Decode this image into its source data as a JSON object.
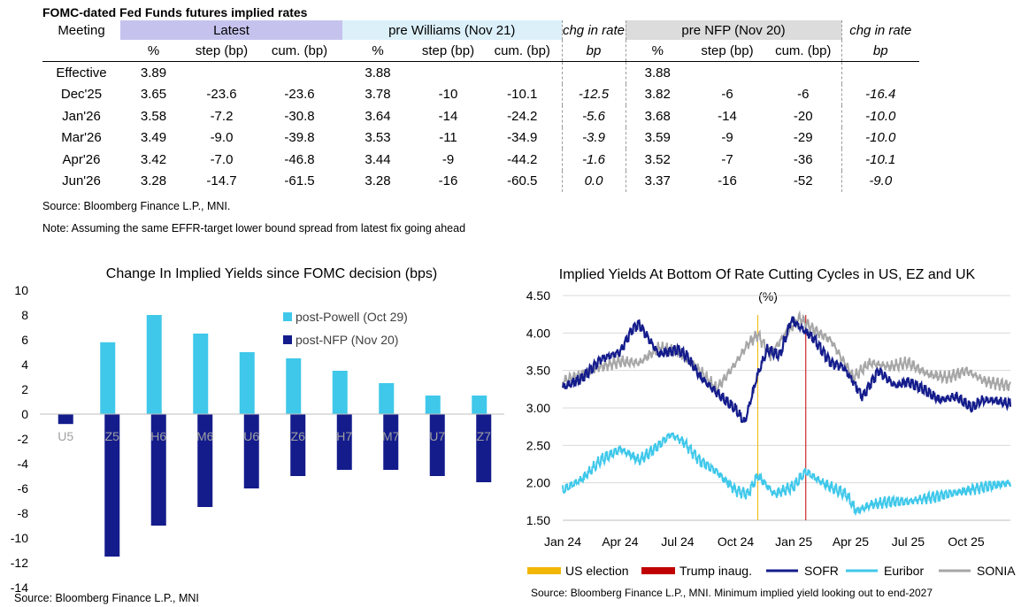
{
  "table": {
    "title": "FOMC-dated Fed Funds futures implied rates",
    "group_headers": {
      "meeting": "Meeting",
      "latest": "Latest",
      "williams": "pre Williams (Nov 21)",
      "chg1": "chg in rate",
      "nfp": "pre NFP (Nov 20)",
      "chg2": "chg in rate"
    },
    "sub_headers": [
      "",
      "%",
      "step (bp)",
      "cum. (bp)",
      "%",
      "step (bp)",
      "cum. (bp)",
      "bp",
      "%",
      "step (bp)",
      "cum. (bp)",
      "bp"
    ],
    "rows": [
      [
        "Effective",
        "3.89",
        "",
        "",
        "3.88",
        "",
        "",
        "",
        "3.88",
        "",
        "",
        ""
      ],
      [
        "Dec'25",
        "3.65",
        "-23.6",
        "-23.6",
        "3.78",
        "-10",
        "-10.1",
        "-12.5",
        "3.82",
        "-6",
        "-6",
        "-16.4"
      ],
      [
        "Jan'26",
        "3.58",
        "-7.2",
        "-30.8",
        "3.64",
        "-14",
        "-24.2",
        "-5.6",
        "3.68",
        "-14",
        "-20",
        "-10.0"
      ],
      [
        "Mar'26",
        "3.49",
        "-9.0",
        "-39.8",
        "3.53",
        "-11",
        "-34.9",
        "-3.9",
        "3.59",
        "-9",
        "-29",
        "-10.0"
      ],
      [
        "Apr'26",
        "3.42",
        "-7.0",
        "-46.8",
        "3.44",
        "-9",
        "-44.2",
        "-1.6",
        "3.52",
        "-7",
        "-36",
        "-10.1"
      ],
      [
        "Jun'26",
        "3.28",
        "-14.7",
        "-61.5",
        "3.28",
        "-16",
        "-60.5",
        "0.0",
        "3.37",
        "-16",
        "-52",
        "-9.0"
      ]
    ],
    "source": "Source: Bloomberg Finance L.P., MNI.",
    "note": "Note: Assuming the same  EFFR-target lower bound spread from latest fix going ahead"
  },
  "chart_data": [
    {
      "type": "bar",
      "title": "Change In Implied Yields since FOMC decision (bps)",
      "categories": [
        "U5",
        "Z5",
        "H6",
        "M6",
        "U6",
        "Z6",
        "H7",
        "M7",
        "U7",
        "Z7"
      ],
      "series": [
        {
          "name": "post-Powell (Oct 29)",
          "color": "#3fc8ea",
          "values": [
            0,
            5.8,
            8.0,
            6.5,
            5.0,
            4.5,
            3.5,
            2.5,
            1.5,
            1.5
          ]
        },
        {
          "name": "post-NFP (Nov 20)",
          "color": "#141c8c",
          "values": [
            -0.8,
            -11.5,
            -9.0,
            -7.5,
            -6.0,
            -5.0,
            -4.5,
            -4.5,
            -5.0,
            -5.5
          ]
        }
      ],
      "yticks": [
        "10",
        "8",
        "6",
        "4",
        "2",
        "0",
        "-2",
        "-4",
        "-6",
        "-8",
        "-10",
        "-12",
        "-14"
      ],
      "ylim": [
        -14,
        10
      ],
      "legend": "upper-right",
      "source": "Source: Bloomberg Finance L.P., MNI"
    },
    {
      "type": "line",
      "title": "Implied Yields At Bottom Of Rate Cutting Cycles in US, EZ and UK",
      "ylabel": "(%)",
      "xticks": [
        "Jan 24",
        "Apr 24",
        "Jul 24",
        "Oct 24",
        "Jan 25",
        "Apr 25",
        "Jul 25",
        "Oct 25"
      ],
      "yticks": [
        "4.50",
        "4.00",
        "3.50",
        "3.00",
        "2.50",
        "2.00",
        "1.50"
      ],
      "ylim": [
        1.5,
        4.5
      ],
      "x_range": [
        "2024-01-01",
        "2025-12-10"
      ],
      "grid": true,
      "events": [
        {
          "name": "US election",
          "date": "2024-11-05",
          "color": "#f2b705"
        },
        {
          "name": "Trump inaug.",
          "date": "2025-01-20",
          "color": "#c00000"
        }
      ],
      "series": [
        {
          "name": "SOFR",
          "color": "#141c8c",
          "x": [
            "2024-01-01",
            "2024-02-01",
            "2024-03-01",
            "2024-04-01",
            "2024-04-20",
            "2024-05-01",
            "2024-06-01",
            "2024-07-01",
            "2024-07-15",
            "2024-08-05",
            "2024-09-01",
            "2024-10-01",
            "2024-10-15",
            "2024-11-05",
            "2024-11-20",
            "2024-12-10",
            "2024-12-28",
            "2025-01-15",
            "2025-02-01",
            "2025-03-01",
            "2025-03-20",
            "2025-04-05",
            "2025-04-20",
            "2025-05-15",
            "2025-06-10",
            "2025-07-01",
            "2025-07-25",
            "2025-08-20",
            "2025-09-15",
            "2025-10-10",
            "2025-10-25",
            "2025-11-15",
            "2025-12-10"
          ],
          "values": [
            3.27,
            3.4,
            3.65,
            3.75,
            4.05,
            4.12,
            3.72,
            3.78,
            3.7,
            3.42,
            3.2,
            2.98,
            2.8,
            3.45,
            3.78,
            3.7,
            4.18,
            4.05,
            3.93,
            3.6,
            3.55,
            3.35,
            3.15,
            3.5,
            3.3,
            3.35,
            3.25,
            3.1,
            3.15,
            3.0,
            3.1,
            3.1,
            3.05
          ]
        },
        {
          "name": "Euribor",
          "color": "#3fc8ea",
          "x": [
            "2024-01-01",
            "2024-02-01",
            "2024-03-01",
            "2024-04-01",
            "2024-05-01",
            "2024-06-01",
            "2024-06-20",
            "2024-07-10",
            "2024-08-05",
            "2024-09-01",
            "2024-10-01",
            "2024-10-20",
            "2024-11-05",
            "2024-12-01",
            "2025-01-01",
            "2025-01-20",
            "2025-02-15",
            "2025-03-10",
            "2025-03-25",
            "2025-04-10",
            "2025-05-01",
            "2025-06-01",
            "2025-07-01",
            "2025-08-01",
            "2025-09-01",
            "2025-10-01",
            "2025-11-01",
            "2025-12-10"
          ],
          "values": [
            1.9,
            2.05,
            2.3,
            2.45,
            2.3,
            2.5,
            2.65,
            2.55,
            2.3,
            2.15,
            1.9,
            1.85,
            2.1,
            1.85,
            1.95,
            2.15,
            2.0,
            1.9,
            1.85,
            1.62,
            1.7,
            1.75,
            1.75,
            1.8,
            1.85,
            1.9,
            1.95,
            2.0
          ]
        },
        {
          "name": "SONIA",
          "color": "#a6a6a6",
          "x": [
            "2024-01-01",
            "2024-02-01",
            "2024-03-01",
            "2024-04-01",
            "2024-05-01",
            "2024-06-01",
            "2024-07-01",
            "2024-08-05",
            "2024-09-01",
            "2024-10-01",
            "2024-10-20",
            "2024-11-05",
            "2024-11-25",
            "2024-12-15",
            "2025-01-10",
            "2025-02-01",
            "2025-03-01",
            "2025-04-05",
            "2025-05-01",
            "2025-06-01",
            "2025-07-01",
            "2025-08-01",
            "2025-09-01",
            "2025-10-01",
            "2025-11-01",
            "2025-12-10"
          ],
          "values": [
            3.35,
            3.45,
            3.55,
            3.62,
            3.6,
            3.8,
            3.75,
            3.5,
            3.25,
            3.6,
            3.85,
            3.98,
            3.7,
            3.95,
            4.2,
            4.05,
            3.9,
            3.4,
            3.6,
            3.55,
            3.6,
            3.45,
            3.4,
            3.5,
            3.35,
            3.3
          ]
        }
      ],
      "legend": "bottom",
      "source": "Source: Bloomberg Finance L.P., MNI. Minimum implied yield looking out to end-2027"
    }
  ]
}
